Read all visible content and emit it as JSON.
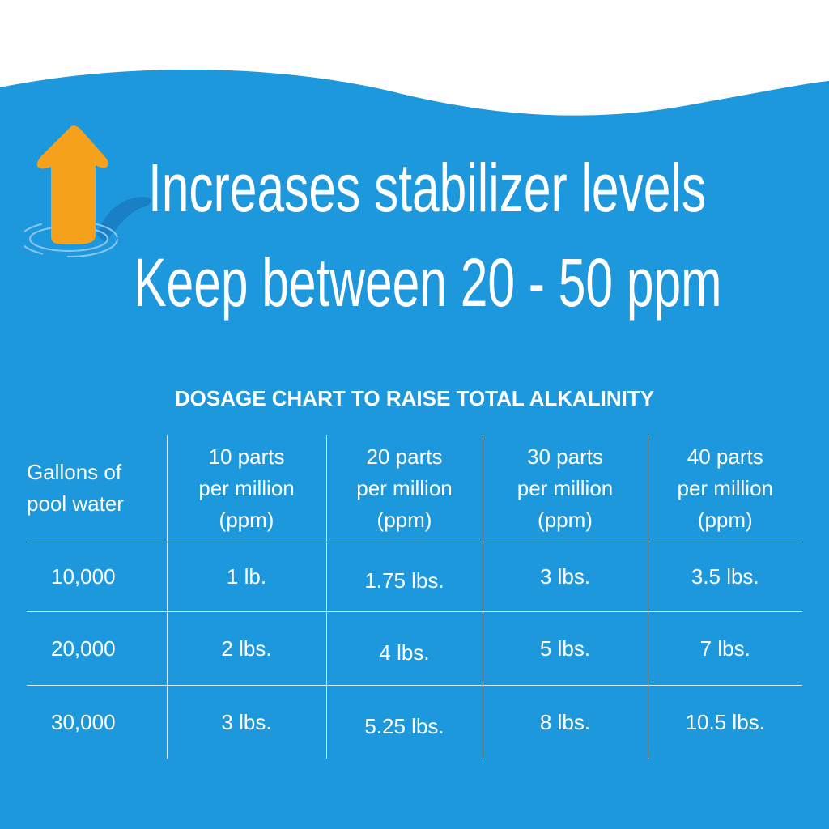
{
  "colors": {
    "background": "#1e98dc",
    "accent": "#f6a11c",
    "shadow": "#1a80c6"
  },
  "icon": "up-arrow-in-water-icon",
  "headline": {
    "line1": "Increases stabilizer levels",
    "line2": "Keep between 20 - 50 ppm"
  },
  "table": {
    "title": "DOSAGE CHART TO RAISE TOTAL ALKALINITY",
    "headers": [
      [
        "Gallons of",
        "pool water"
      ],
      [
        "10 parts",
        "per million",
        "(ppm)"
      ],
      [
        "20 parts",
        "per million",
        "(ppm)"
      ],
      [
        "30 parts",
        "per million",
        "(ppm)"
      ],
      [
        "40 parts",
        "per million",
        "(ppm)"
      ]
    ],
    "rows": [
      [
        "10,000",
        "1 lb.",
        "1.75 lbs.",
        "3 lbs.",
        "3.5 lbs."
      ],
      [
        "20,000",
        "2 lbs.",
        "4 lbs.",
        "5 lbs.",
        "7 lbs."
      ],
      [
        "30,000",
        "3 lbs.",
        "5.25 lbs.",
        "8 lbs.",
        "10.5 lbs."
      ]
    ]
  }
}
